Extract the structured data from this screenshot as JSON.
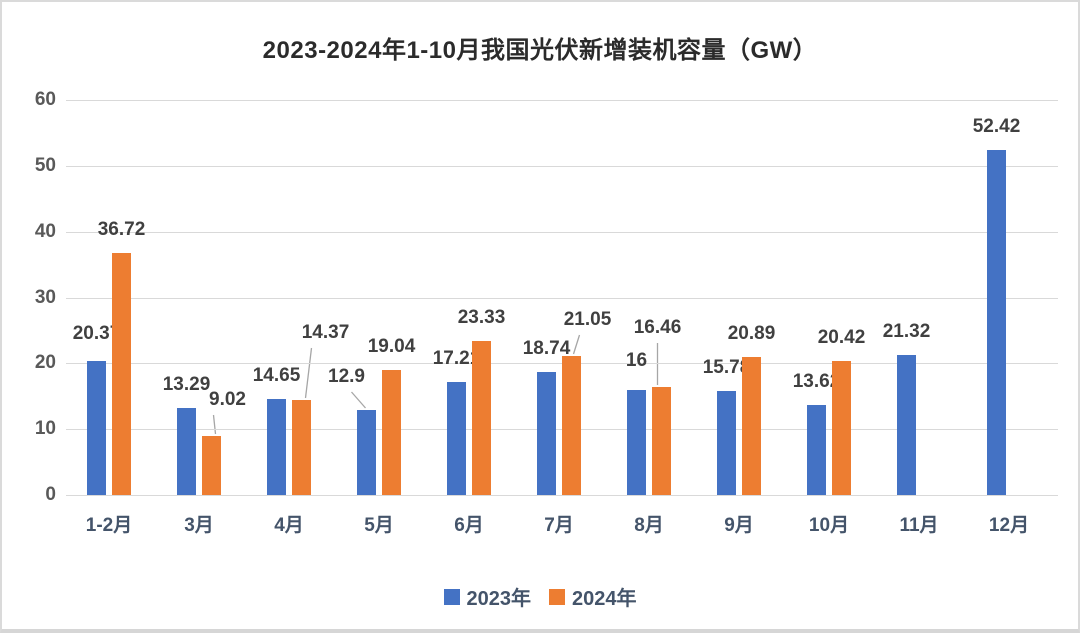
{
  "title": "2023-2024年1-10月我国光伏新增装机容量（GW）",
  "chart_data": {
    "type": "bar",
    "categories": [
      "1-2月",
      "3月",
      "4月",
      "5月",
      "6月",
      "7月",
      "8月",
      "9月",
      "10月",
      "11月",
      "12月"
    ],
    "series": [
      {
        "name": "2023年",
        "color": "#4472C4",
        "values": [
          20.37,
          13.29,
          14.65,
          12.9,
          17.21,
          18.74,
          16,
          15.78,
          13.62,
          21.32,
          52.42
        ]
      },
      {
        "name": "2024年",
        "color": "#ED7D31",
        "values": [
          36.72,
          9.02,
          14.37,
          19.04,
          23.33,
          21.05,
          16.46,
          20.89,
          20.42,
          null,
          null
        ]
      }
    ],
    "title": "2023-2024年1-10月我国光伏新增装机容量（GW）",
    "xlabel": "",
    "ylabel": "",
    "ylim": [
      0,
      60
    ],
    "yticks": [
      0,
      10,
      20,
      30,
      40,
      50,
      60
    ],
    "grid": true,
    "legend_position": "bottom",
    "data_labels": true
  },
  "colors": {
    "series_2023": "#4472C4",
    "series_2024": "#ED7D31",
    "gridline": "#D9D9D9",
    "y_axis_text": "#595959",
    "x_axis_text": "#44546A",
    "data_label_text": "#404040",
    "leader_line": "#A6A6A6",
    "border": "#DADADA",
    "background": "#FFFFFF"
  }
}
